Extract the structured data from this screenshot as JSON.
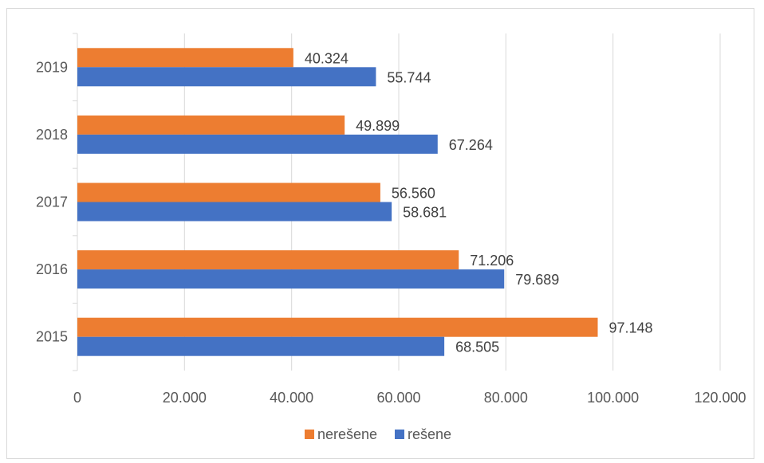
{
  "chart_data": {
    "type": "bar",
    "orientation": "horizontal",
    "categories": [
      "2015",
      "2016",
      "2017",
      "2018",
      "2019"
    ],
    "series": [
      {
        "name": "nerešene",
        "color": "#ED7D31",
        "values": [
          97148,
          71206,
          56560,
          49899,
          40324
        ],
        "labels": [
          "97.148",
          "71.206",
          "56.560",
          "49.899",
          "40.324"
        ]
      },
      {
        "name": "rešene",
        "color": "#4472C4",
        "values": [
          68505,
          79689,
          58681,
          67264,
          55744
        ],
        "labels": [
          "68.505",
          "79.689",
          "58.681",
          "67.264",
          "55.744"
        ]
      }
    ],
    "xlim": [
      0,
      120000
    ],
    "x_ticks": [
      0,
      20000,
      40000,
      60000,
      80000,
      100000,
      120000
    ],
    "x_tick_labels": [
      "0",
      "20.000",
      "40.000",
      "60.000",
      "80.000",
      "100.000",
      "120.000"
    ],
    "grid": "vertical",
    "legend_position": "bottom",
    "title": "",
    "xlabel": "",
    "ylabel": ""
  }
}
